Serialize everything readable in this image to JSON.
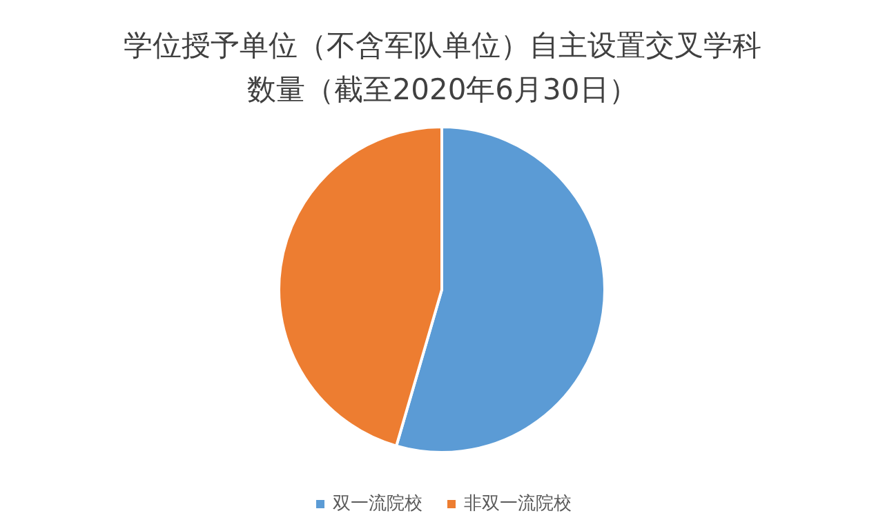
{
  "chart_data": {
    "type": "pie",
    "title": "学位授予单位（不含军队单位）自主设置交叉学科数量（截至2020年6月30日）",
    "categories": [
      "双一流院校",
      "非双一流院校"
    ],
    "values": [
      54.5,
      45.5
    ],
    "colors": [
      "#5b9bd5",
      "#ed7d31"
    ],
    "legend": "bottom"
  }
}
